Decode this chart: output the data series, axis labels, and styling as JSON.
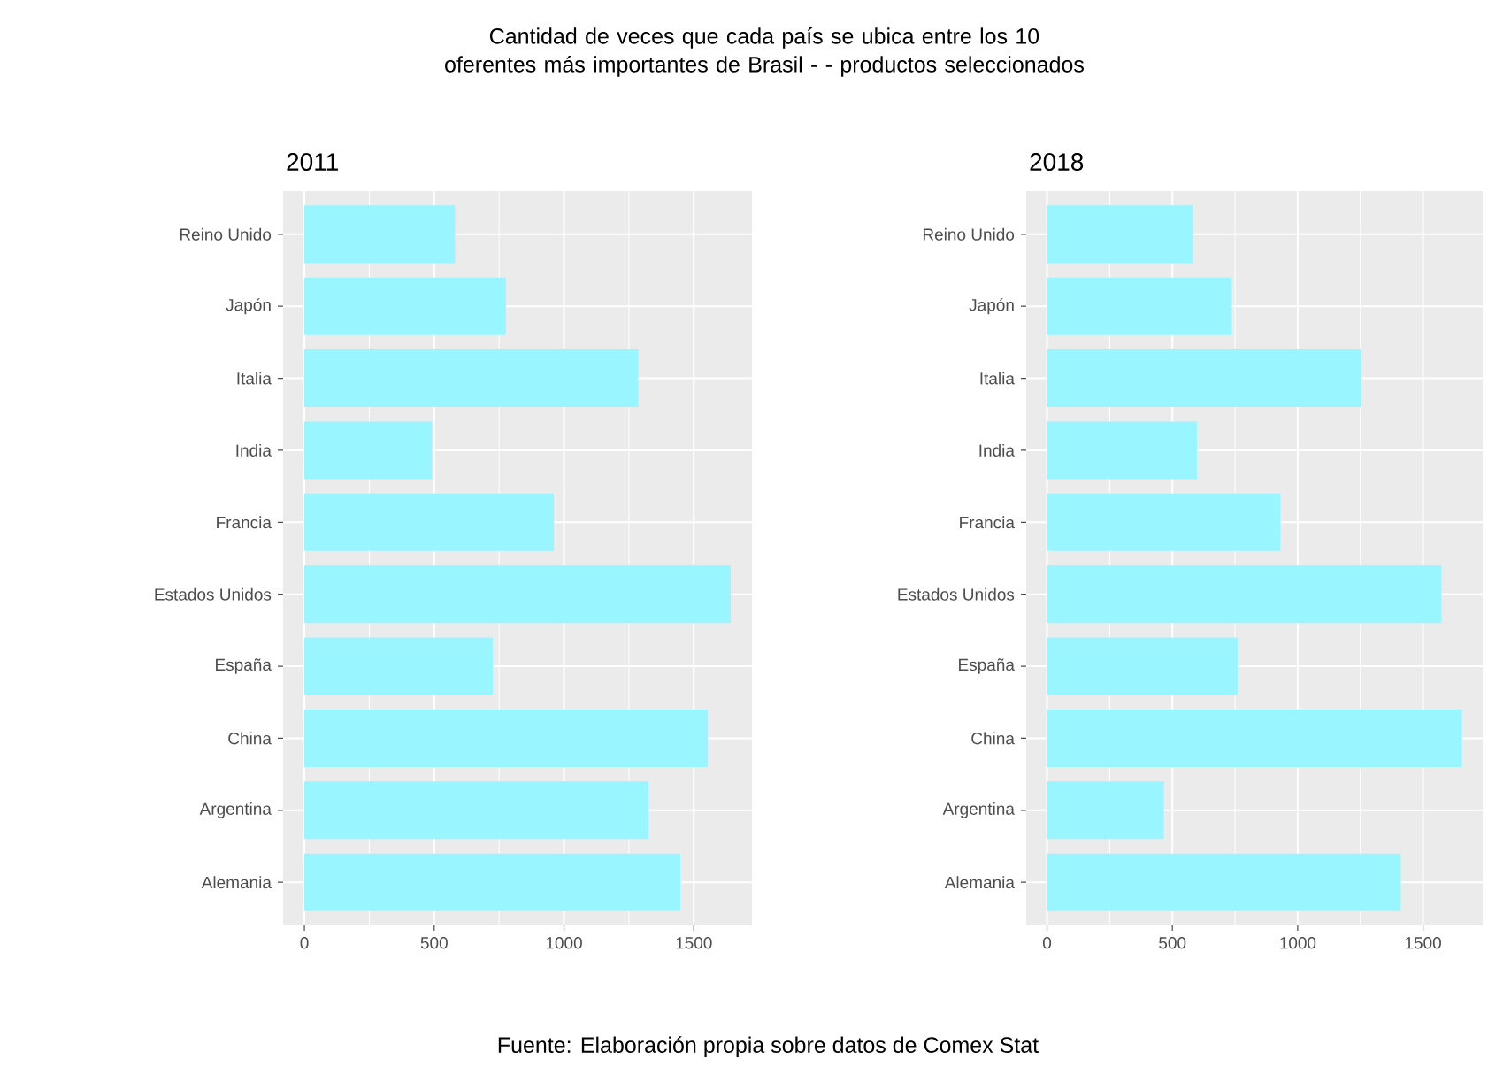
{
  "chart_data": [
    {
      "type": "bar",
      "orientation": "horizontal",
      "title": "Cantidad de veces que cada país se ubica entre los 10 oferentes más importantes de Brasil - - productos seleccionados",
      "subtitle": "2011",
      "categories": [
        "Reino Unido",
        "Japón",
        "Italia",
        "India",
        "Francia",
        "Estados Unidos",
        "España",
        "China",
        "Argentina",
        "Alemania"
      ],
      "values": [
        580,
        776,
        1286,
        492,
        961,
        1642,
        726,
        1554,
        1326,
        1448
      ],
      "color": "#99f5ff",
      "xlim": [
        -82,
        1724
      ],
      "xticks": [
        0,
        500,
        1000,
        1500
      ],
      "grid": true,
      "annotations": [
        "Fuente: Elaboración propia sobre datos de Comex Stat"
      ]
    },
    {
      "type": "bar",
      "orientation": "horizontal",
      "title": "2018",
      "categories": [
        "Reino Unido",
        "Japón",
        "Italia",
        "India",
        "Francia",
        "Estados Unidos",
        "España",
        "China",
        "Argentina",
        "Alemania"
      ],
      "values": [
        582,
        737,
        1253,
        598,
        931,
        1573,
        760,
        1655,
        466,
        1411
      ],
      "color": "#99f5ff",
      "xlim": [
        -83,
        1738
      ],
      "xticks": [
        0,
        500,
        1000,
        1500
      ],
      "grid": true
    }
  ]
}
